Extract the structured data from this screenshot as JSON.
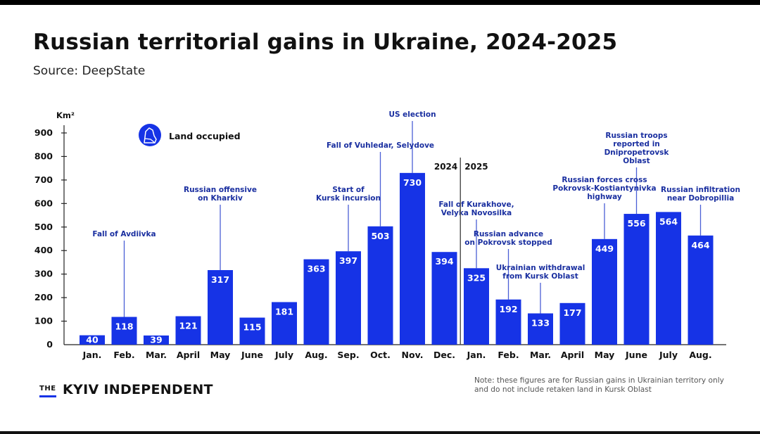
{
  "header": {
    "title": "Russian territorial gains in Ukraine, 2024-2025",
    "source": "Source: DeepState"
  },
  "footer": {
    "brand_the": "THE",
    "brand_name": "KYIV INDEPENDENT",
    "note": "Note: these figures are for Russian gains in Ukrainian territory only and do not include retaken land in Kursk Oblast"
  },
  "chart_data": {
    "type": "bar",
    "ylabel": "Km²",
    "ylim": [
      0,
      900
    ],
    "yticks": [
      0,
      100,
      200,
      300,
      400,
      500,
      600,
      700,
      800,
      900
    ],
    "categories": [
      "Jan.",
      "Feb.",
      "Mar.",
      "April",
      "May",
      "June",
      "July",
      "Aug.",
      "Sep.",
      "Oct.",
      "Nov.",
      "Dec.",
      "Jan.",
      "Feb.",
      "Mar.",
      "April",
      "May",
      "June",
      "July",
      "Aug."
    ],
    "year_labels": [
      "2024",
      "2025"
    ],
    "series": [
      {
        "name": "Land occupied",
        "color": "#1633e6",
        "values": [
          40,
          118,
          39,
          121,
          317,
          115,
          181,
          363,
          397,
          503,
          730,
          394,
          325,
          192,
          133,
          177,
          449,
          556,
          564,
          464
        ]
      }
    ],
    "annotations": [
      {
        "index": 1,
        "lines": [
          "Fall of Avdiivka"
        ]
      },
      {
        "index": 4,
        "lines": [
          "Russian offensive",
          "on Kharkiv"
        ]
      },
      {
        "index": 8,
        "lines": [
          "Start of",
          "Kursk incursion"
        ]
      },
      {
        "index": 9,
        "lines": [
          "Fall of Vuhledar, Selydove"
        ]
      },
      {
        "index": 10,
        "lines": [
          "US election"
        ]
      },
      {
        "index": 12,
        "lines": [
          "Fall of Kurakhove,",
          "Velyka Novosilka"
        ]
      },
      {
        "index": 13,
        "lines": [
          "Russian advance",
          "on Pokrovsk stopped"
        ]
      },
      {
        "index": 14,
        "lines": [
          "Ukrainian withdrawal",
          "from Kursk Oblast"
        ]
      },
      {
        "index": 16,
        "lines": [
          "Russian forces cross",
          "Pokrovsk-Kostiantynivka",
          "highway"
        ]
      },
      {
        "index": 17,
        "lines": [
          "Russian troops",
          "reported in",
          "Dnipropetrovsk",
          "Oblast"
        ]
      },
      {
        "index": 19,
        "lines": [
          "Russian infiltration",
          "near Dobropillia"
        ]
      }
    ],
    "grid": false,
    "legend_position": "top-left"
  }
}
